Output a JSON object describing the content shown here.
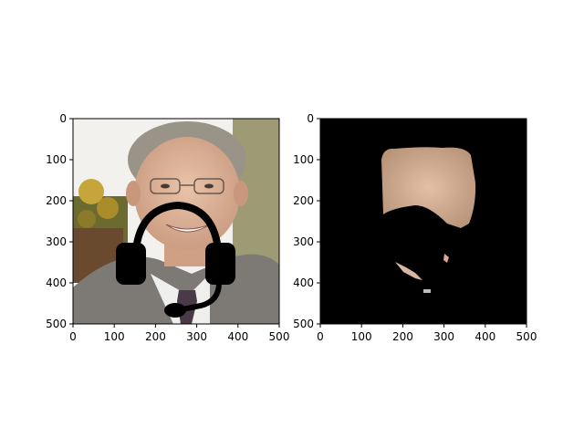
{
  "figure": {
    "background": "#ffffff"
  },
  "chart_data": [
    {
      "type": "image",
      "panel": "left",
      "content": "photo of a man in a suit with a black headset overlay",
      "xlim": [
        0,
        500
      ],
      "ylim": [
        500,
        0
      ],
      "xticks": [
        "0",
        "100",
        "200",
        "300",
        "400",
        "500"
      ],
      "yticks": [
        "0",
        "100",
        "200",
        "300",
        "400",
        "500"
      ],
      "grid": false
    },
    {
      "type": "image",
      "panel": "right",
      "content": "segmentation mask: skin pixels shown on black background, headset region masked out",
      "xlim": [
        0,
        500
      ],
      "ylim": [
        500,
        0
      ],
      "xticks": [
        "0",
        "100",
        "200",
        "300",
        "400",
        "500"
      ],
      "yticks": [
        "0",
        "100",
        "200",
        "300",
        "400",
        "500"
      ],
      "grid": false,
      "background_color": "#000000"
    }
  ]
}
